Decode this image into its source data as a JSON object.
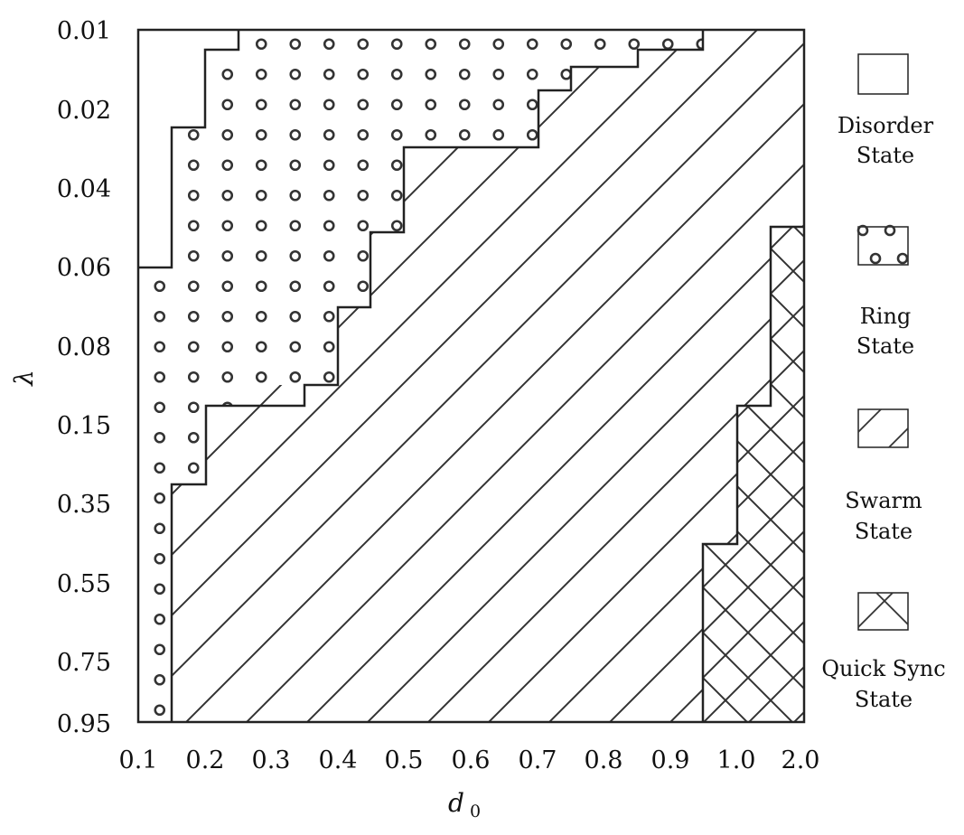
{
  "chart_data": {
    "type": "heatmap",
    "title": "",
    "xlabel": "d0",
    "ylabel": "λ",
    "x_ticks": [
      "0.1",
      "0.2",
      "0.3",
      "0.4",
      "0.5",
      "0.6",
      "0.7",
      "0.8",
      "0.9",
      "1.0",
      "2.0"
    ],
    "y_ticks": [
      "0.01",
      "0.02",
      "0.04",
      "0.06",
      "0.08",
      "0.15",
      "0.35",
      "0.55",
      "0.75",
      "0.95"
    ],
    "x_range": [
      0.1,
      2.0
    ],
    "y_range": [
      0.01,
      0.95
    ],
    "y_inverted": true,
    "legend_position": "right",
    "states": [
      {
        "key": "disorder",
        "label_lines": [
          "Disorder",
          "State"
        ],
        "pattern": "blank"
      },
      {
        "key": "ring",
        "label_lines": [
          "Ring",
          "State"
        ],
        "pattern": "circles"
      },
      {
        "key": "swarm",
        "label_lines": [
          "Swarm",
          "State"
        ],
        "pattern": "diagonal"
      },
      {
        "key": "quick_sync",
        "label_lines": [
          "Quick Sync",
          "State"
        ],
        "pattern": "crosshatch"
      }
    ],
    "regions": {
      "disorder_ring_boundary": [
        [
          0.1,
          0.06
        ],
        [
          0.2,
          0.06
        ],
        [
          0.2,
          0.022
        ],
        [
          0.25,
          0.022
        ],
        [
          0.25,
          0.0125
        ],
        [
          0.35,
          0.0125
        ],
        [
          0.35,
          0.01
        ]
      ],
      "ring_swarm_boundary": [
        [
          0.15,
          0.95
        ],
        [
          0.15,
          0.3
        ],
        [
          0.2,
          0.3
        ],
        [
          0.2,
          0.13
        ],
        [
          0.25,
          0.13
        ],
        [
          0.25,
          0.09
        ],
        [
          0.35,
          0.09
        ],
        [
          0.35,
          0.07
        ],
        [
          0.45,
          0.07
        ],
        [
          0.45,
          0.05
        ],
        [
          0.5,
          0.05
        ],
        [
          0.5,
          0.03
        ],
        [
          0.7,
          0.03
        ],
        [
          0.7,
          0.02
        ],
        [
          0.75,
          0.02
        ],
        [
          0.75,
          0.015
        ],
        [
          0.85,
          0.015
        ],
        [
          0.85,
          0.01
        ]
      ],
      "swarm_quick_sync_boundary": [
        [
          0.95,
          0.95
        ],
        [
          0.95,
          0.45
        ],
        [
          1.5,
          0.45
        ],
        [
          1.5,
          0.13
        ],
        [
          1.5,
          0.13
        ],
        [
          2.0,
          0.05
        ]
      ]
    }
  }
}
